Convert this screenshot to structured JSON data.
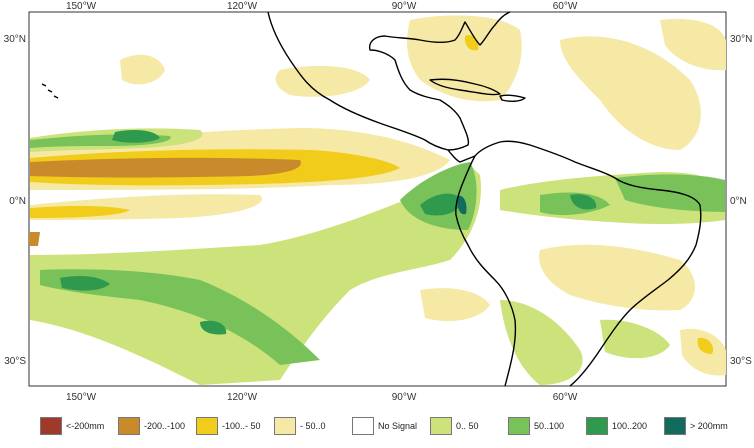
{
  "map": {
    "lon_ticks": [
      "150°W",
      "120°W",
      "90°W",
      "60°W"
    ],
    "lat_ticks": [
      "30°N",
      "0°N",
      "30°S"
    ],
    "colors": {
      "lt_neg200": "#a0392a",
      "neg200_neg100": "#c98a2c",
      "neg100_neg50": "#f2cc1a",
      "neg50_0": "#f6e9a6",
      "no_signal": "#ffffff",
      "0_50": "#cce27a",
      "50_100": "#79c25a",
      "100_200": "#2f9a4d",
      "gt_200": "#136b5e"
    }
  },
  "legend": [
    {
      "label": "<-200mm",
      "color": "#a0392a"
    },
    {
      "label": "-200..-100",
      "color": "#c98a2c"
    },
    {
      "label": "-100..- 50",
      "color": "#f2cc1a"
    },
    {
      "label": "- 50..0",
      "color": "#f6e9a6"
    },
    {
      "label": "No Signal",
      "color": "#ffffff"
    },
    {
      "label": "0.. 50",
      "color": "#cce27a"
    },
    {
      "label": "50..100",
      "color": "#79c25a"
    },
    {
      "label": "100..200",
      "color": "#2f9a4d"
    },
    {
      "label": "> 200mm",
      "color": "#136b5e"
    }
  ]
}
